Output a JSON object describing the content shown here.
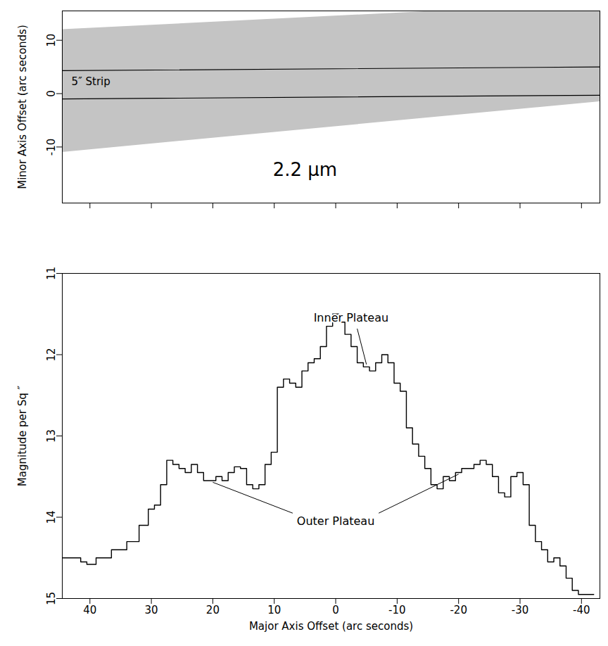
{
  "chart_data": [
    {
      "type": "image",
      "y_label": "Minor Axis Offset (arc seconds)",
      "xlim": [
        44.5,
        -43
      ],
      "ylim": [
        -20.5,
        15.5
      ],
      "xticks": [
        40,
        30,
        20,
        10,
        0,
        -10,
        -20,
        -30,
        -40
      ],
      "yticks": [
        -10,
        0,
        10
      ],
      "tick_labels": "y",
      "color": "#c4c4c4",
      "footprint": {
        "x": [
          44.5,
          -43
        ],
        "lower": [
          -11,
          -1.5
        ],
        "upper": [
          12,
          17
        ]
      },
      "strip": {
        "x": [
          44.5,
          -43
        ],
        "upper": [
          4.3,
          5.0
        ],
        "lower": [
          -1.0,
          -0.3
        ]
      },
      "annotations": [
        {
          "text": "5″ Strip",
          "x": 43,
          "y": 2.2
        },
        {
          "text": "2.2 μm",
          "x": 5,
          "y": -14.3
        }
      ]
    },
    {
      "type": "line",
      "line_style": "step",
      "color": "#000000",
      "x_label": "Major Axis Offset (arc seconds)",
      "y_label": "Magnitude per Sq ″",
      "xlim": [
        44.5,
        -43
      ],
      "ylim": [
        15,
        11
      ],
      "xticks": [
        40,
        30,
        20,
        10,
        0,
        -10,
        -20,
        -30,
        -40
      ],
      "yticks": [
        11,
        12,
        13,
        14,
        15
      ],
      "x": [
        45,
        42,
        41,
        40,
        38,
        35,
        33,
        31,
        30,
        29,
        28,
        27,
        26,
        25,
        24,
        23,
        22,
        21,
        20,
        19,
        18,
        17,
        16,
        15,
        14,
        13,
        12,
        11,
        10,
        9,
        8,
        7,
        6,
        5,
        4,
        3,
        2,
        1,
        0,
        -1,
        -2,
        -3,
        -4,
        -5,
        -6,
        -7,
        -8,
        -9,
        -10,
        -11,
        -12,
        -13,
        -14,
        -15,
        -16,
        -17,
        -18,
        -19,
        -20,
        -21,
        -22,
        -23,
        -24,
        -25,
        -26,
        -27,
        -28,
        -29,
        -30,
        -31,
        -32,
        -33,
        -34,
        -35,
        -36,
        -37,
        -38,
        -39,
        -40,
        -41,
        -42
      ],
      "values": [
        14.5,
        14.5,
        14.55,
        14.58,
        14.5,
        14.4,
        14.3,
        14.1,
        13.9,
        13.85,
        13.6,
        13.3,
        13.35,
        13.4,
        13.45,
        13.35,
        13.45,
        13.55,
        13.55,
        13.5,
        13.55,
        13.45,
        13.38,
        13.4,
        13.6,
        13.65,
        13.6,
        13.35,
        13.2,
        12.4,
        12.3,
        12.35,
        12.4,
        12.2,
        12.1,
        12.05,
        11.9,
        11.65,
        11.5,
        11.6,
        11.75,
        11.9,
        12.1,
        12.15,
        12.2,
        12.1,
        12.0,
        12.1,
        12.35,
        12.45,
        12.9,
        13.1,
        13.25,
        13.4,
        13.6,
        13.65,
        13.5,
        13.55,
        13.45,
        13.4,
        13.4,
        13.35,
        13.3,
        13.35,
        13.5,
        13.7,
        13.75,
        13.5,
        13.45,
        13.6,
        14.1,
        14.3,
        14.4,
        14.55,
        14.5,
        14.6,
        14.75,
        14.9,
        14.95,
        14.95,
        14.95
      ],
      "annotations": [
        {
          "text": "Inner Plateau",
          "x": -2.5,
          "y": 11.55,
          "leaders": [
            {
              "from": [
                -3.5,
                11.68
              ],
              "to": [
                -5,
                12.12
              ]
            }
          ]
        },
        {
          "text": "Outer Plateau",
          "x": 0,
          "y": 14.05,
          "leaders": [
            {
              "from": [
                7,
                13.95
              ],
              "to": [
                20,
                13.57
              ]
            },
            {
              "from": [
                -7,
                13.95
              ],
              "to": [
                -20,
                13.47
              ]
            }
          ]
        }
      ]
    }
  ]
}
